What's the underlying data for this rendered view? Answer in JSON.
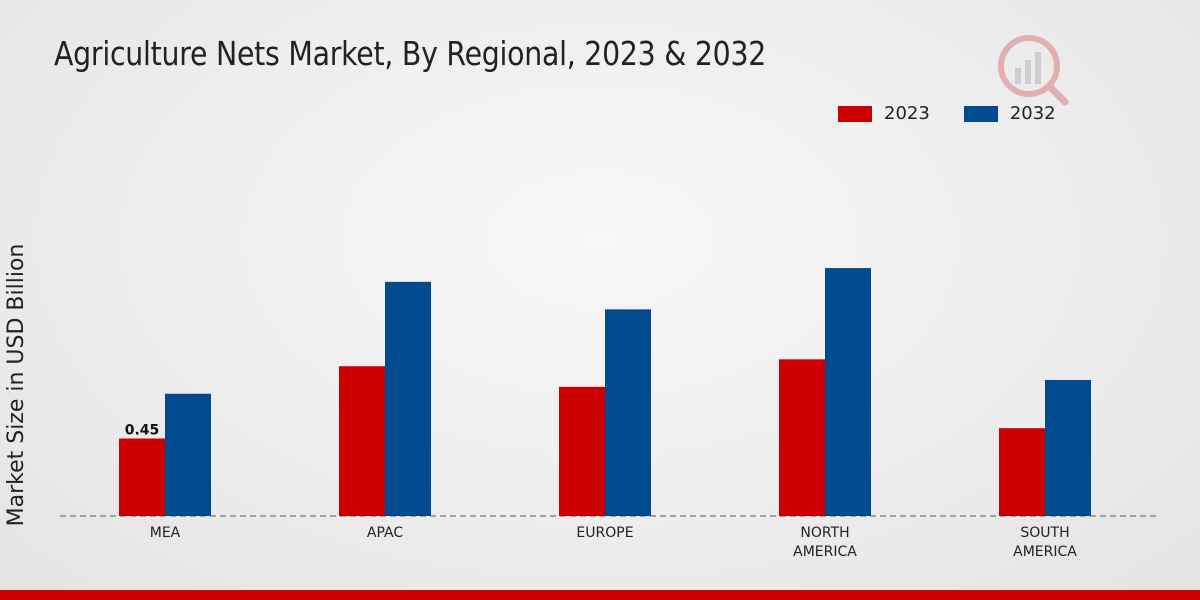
{
  "title": "Agriculture Nets Market, By Regional, 2023 & 2032",
  "legend": [
    {
      "label": "2023",
      "color": "#cc0000"
    },
    {
      "label": "2032",
      "color": "#004a8f"
    }
  ],
  "chart_data": {
    "type": "bar",
    "title": "Agriculture Nets Market, By Regional, 2023 & 2032",
    "ylabel": "Market Size in USD Billion",
    "xlabel": "",
    "categories": [
      "MEA",
      "APAC",
      "EUROPE",
      "NORTH AMERICA",
      "SOUTH AMERICA"
    ],
    "category_lines": [
      [
        "MEA"
      ],
      [
        "APAC"
      ],
      [
        "EUROPE"
      ],
      [
        "NORTH",
        "AMERICA"
      ],
      [
        "SOUTH",
        "AMERICA"
      ]
    ],
    "series": [
      {
        "name": "2023",
        "color": "#cc0000",
        "values": [
          0.45,
          0.87,
          0.75,
          0.91,
          0.51
        ]
      },
      {
        "name": "2032",
        "color": "#004a8f",
        "values": [
          0.71,
          1.36,
          1.2,
          1.44,
          0.79
        ]
      }
    ],
    "data_labels": [
      {
        "series": 0,
        "index": 0,
        "text": "0.45"
      }
    ],
    "ylim": [
      0,
      2.3
    ],
    "grid": false,
    "legend_position": "top-right"
  }
}
